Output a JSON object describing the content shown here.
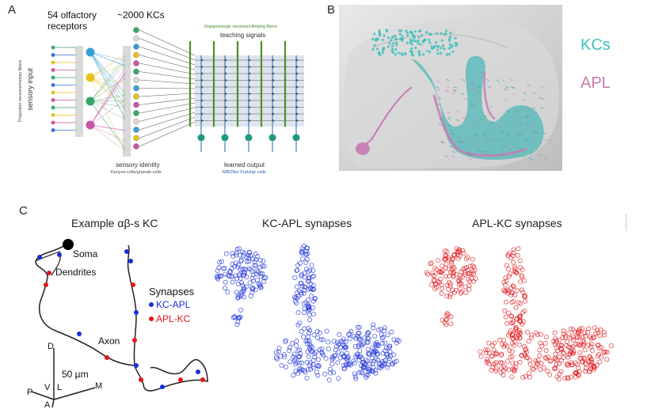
{
  "panels": {
    "a": {
      "letter": "A",
      "receptors_label_line1": "54 olfactory",
      "receptors_label_line2": "receptors",
      "kcs_label": "~2000 KCs",
      "vertical_label_small": "Projection neurons/mossy fibers",
      "vertical_label_main": "sensory input",
      "teaching_small": "Dopaminergic neurons/climbing fibers",
      "teaching_main": "teaching signals",
      "identity_main": "sensory identity",
      "identity_small": "Kenyon cells/granule cells",
      "output_main": "learned output",
      "output_small": "MBONs/ Purkinje cells"
    },
    "b": {
      "letter": "B",
      "kcs_label": "KCs",
      "apl_label": "APL"
    },
    "c": {
      "letter": "C",
      "title_left": "Example αβ-s KC",
      "title_middle": "KC-APL synapses",
      "title_right": "APL-KC synapses",
      "soma": "Soma",
      "dendrites": "Dendrites",
      "axon": "Axon",
      "synapses": "Synapses",
      "kc_apl": "KC-APL",
      "apl_kc": "APL-KC",
      "scale": "50 µm",
      "axis_d": "D",
      "axis_v": "V",
      "axis_l": "L",
      "axis_m": "M",
      "axis_p": "P",
      "axis_a": "A"
    }
  },
  "colors": {
    "kc_cyan": "#3fbfbf",
    "apl_pink": "#c77bb0",
    "kc_apl_blue": "#1a2fd8",
    "apl_kc_red": "#e0161b",
    "teaching_green": "#4c8f2a",
    "output_teal": "#1d9a7c"
  }
}
